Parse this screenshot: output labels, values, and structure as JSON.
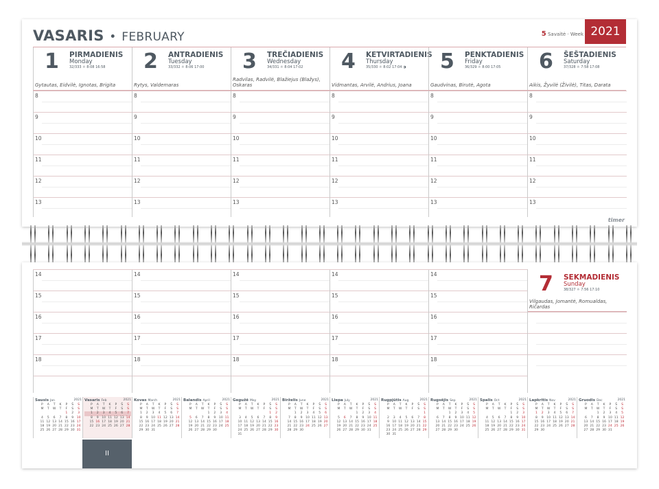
{
  "header": {
    "month_lt": "VASARIS",
    "separator": "•",
    "month_en": "FEBRUARY",
    "week_number": "5",
    "week_label": "Savaitė · Week",
    "year": "2021"
  },
  "brand": "timer",
  "days": [
    {
      "num": "1",
      "name": "PIRMADIENIS",
      "en": "Monday",
      "info": "32/333 ☼ 8:08 16:58",
      "names": "Gytautas, Eidvilė, Ignotas, Brigita"
    },
    {
      "num": "2",
      "name": "ANTRADIENIS",
      "en": "Tuesday",
      "info": "33/332 ☼ 8:06 17:00",
      "names": "Rytys, Valdemaras"
    },
    {
      "num": "3",
      "name": "TREČIADIENIS",
      "en": "Wednesday",
      "info": "34/331 ☼ 8:04 17:02",
      "names": "Radvilas, Radvilė, Blažiejus (Blažys), Oskaras"
    },
    {
      "num": "4",
      "name": "KETVIRTADIENIS",
      "en": "Thursday",
      "info": "35/330 ☼ 8:02 17:04 ◑",
      "names": "Vidmantas, Arvilė, Andrius, Joana"
    },
    {
      "num": "5",
      "name": "PENKTADIENIS",
      "en": "Friday",
      "info": "36/329 ☼ 8:00 17:05",
      "names": "Gaudvinas, Birutė, Agota"
    },
    {
      "num": "6",
      "name": "ŠEŠTADIENIS",
      "en": "Saturday",
      "info": "37/328 ☼ 7:58 17:08",
      "names": "Aikis, Žyvilė (Živilė), Titas, Darata"
    },
    {
      "num": "7",
      "name": "SEKMADIENIS",
      "en": "Sunday",
      "info": "38/327 ☼ 7:56 17:10",
      "names": "Vilgaudas, Jomantė, Romualdas, Ričardas"
    }
  ],
  "hours_top": [
    "8",
    "9",
    "10",
    "11",
    "12",
    "13"
  ],
  "hours_bottom": [
    "14",
    "15",
    "16",
    "17",
    "18"
  ],
  "weekdays_lt": [
    "P",
    "A",
    "T",
    "K",
    "P",
    "Š",
    "S"
  ],
  "weekdays_en": [
    "M",
    "T",
    "W",
    "T",
    "F",
    "S",
    "S"
  ],
  "months": [
    {
      "lt": "Sausis",
      "en": "Jan",
      "year": "2021",
      "offset": 4,
      "days": 31,
      "red": [
        1
      ]
    },
    {
      "lt": "Vasaris",
      "en": "Feb",
      "year": "2021",
      "offset": 0,
      "days": 28,
      "red": [
        16
      ],
      "current": true
    },
    {
      "lt": "Kovas",
      "en": "March",
      "year": "2021",
      "offset": 0,
      "days": 31,
      "red": [
        11
      ]
    },
    {
      "lt": "Balandis",
      "en": "April",
      "year": "2021",
      "offset": 3,
      "days": 30,
      "red": [
        5
      ]
    },
    {
      "lt": "Gegužė",
      "en": "May",
      "year": "2021",
      "offset": 5,
      "days": 31,
      "red": [
        1
      ]
    },
    {
      "lt": "Birželis",
      "en": "June",
      "year": "2021",
      "offset": 1,
      "days": 30,
      "red": [
        24
      ]
    },
    {
      "lt": "Liepa",
      "en": "July",
      "year": "2021",
      "offset": 3,
      "days": 31,
      "red": [
        6
      ]
    },
    {
      "lt": "Rugpjūtis",
      "en": "Aug",
      "year": "2021",
      "offset": 6,
      "days": 31,
      "red": [
        15
      ]
    },
    {
      "lt": "Rugsėjis",
      "en": "Sep",
      "year": "2021",
      "offset": 2,
      "days": 30,
      "red": []
    },
    {
      "lt": "Spalis",
      "en": "Oct",
      "year": "2021",
      "offset": 4,
      "days": 31,
      "red": []
    },
    {
      "lt": "Lapkritis",
      "en": "Nov",
      "year": "2021",
      "offset": 0,
      "days": 30,
      "red": [
        1,
        2
      ]
    },
    {
      "lt": "Gruodis",
      "en": "Dec",
      "year": "2021",
      "offset": 2,
      "days": 31,
      "red": [
        24,
        25,
        26
      ]
    }
  ],
  "tab_label": "II",
  "colors": {
    "accent": "#b32d35",
    "text": "#4f5962",
    "tab": "#56616b"
  }
}
